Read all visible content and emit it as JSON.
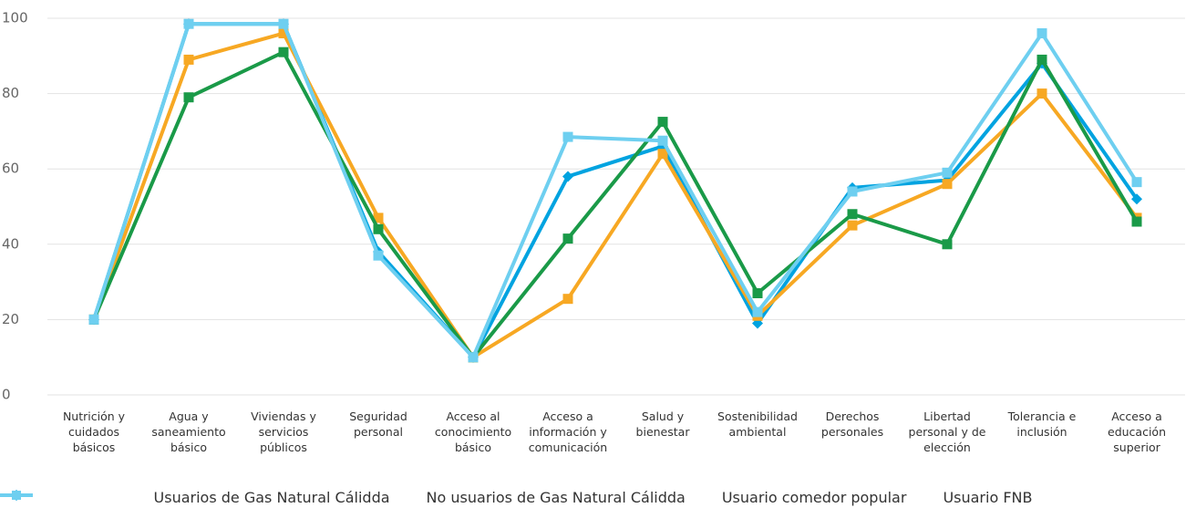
{
  "chart_data": {
    "type": "line",
    "categories": [
      "Nutrición y cuidados básicos",
      "Agua y saneamiento básico",
      "Viviendas y servicios públicos",
      "Seguridad personal",
      "Acceso al conocimiento básico",
      "Acceso a información y comunicación",
      "Salud y bienestar",
      "Sostenibilidad ambiental",
      "Derechos personales",
      "Libertad personal y de elección",
      "Tolerancia e inclusión",
      "Acceso a educación superior"
    ],
    "series": [
      {
        "name": "Usuarios de Gas Natural Cálidda",
        "color": "#00a3e0",
        "marker": "diamond",
        "values": [
          20,
          98.5,
          98.5,
          38,
          10,
          58,
          66,
          19,
          55,
          57,
          88,
          52
        ]
      },
      {
        "name": "No usuarios de Gas Natural Cálidda",
        "color": "#f7a823",
        "marker": "square",
        "values": [
          20,
          89,
          96,
          47,
          10,
          25.5,
          64,
          21,
          45,
          56,
          80,
          47
        ]
      },
      {
        "name": "Usuario comedor popular",
        "color": "#1a9a48",
        "marker": "square",
        "values": [
          20,
          79,
          91,
          44,
          10,
          41.5,
          72.5,
          27,
          48,
          40,
          89,
          46
        ]
      },
      {
        "name": "Usuario FNB",
        "color": "#6ecff0",
        "marker": "square",
        "values": [
          20,
          98.5,
          98.5,
          37,
          10,
          68.5,
          67.5,
          22,
          54,
          59,
          96,
          56.5
        ]
      }
    ],
    "ylim": [
      0,
      100
    ],
    "yticks": [
      0,
      20,
      40,
      60,
      80,
      100
    ],
    "grid": true,
    "legend": "bottom"
  }
}
